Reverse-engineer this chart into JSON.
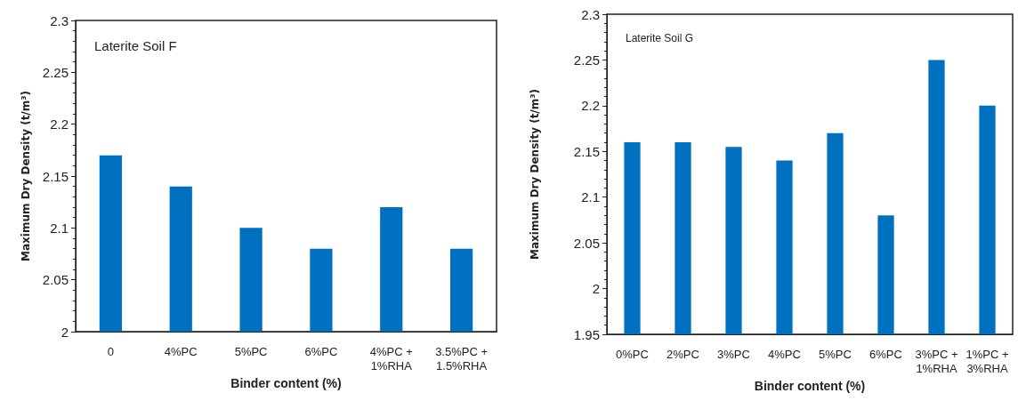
{
  "chart_data": [
    {
      "type": "bar",
      "title": "Laterite Soil F",
      "xlabel": "Binder content (%)",
      "ylabel": "Maximum Dry Density (t/m³)",
      "categories": [
        "0",
        "4%PC",
        "5%PC",
        "6%PC",
        "4%PC +\n1%RHA",
        "3.5%PC +\n1.5%RHA"
      ],
      "values": [
        2.17,
        2.14,
        2.1,
        2.08,
        2.12,
        2.08
      ],
      "color": "#0070c0",
      "ylim": [
        2,
        2.3
      ],
      "yticks": [
        2,
        2.05,
        2.1,
        2.15,
        2.2,
        2.25,
        2.3
      ],
      "grid": false
    },
    {
      "type": "bar",
      "title": "Laterite Soil G",
      "xlabel": "Binder content (%)",
      "ylabel": "Maximum Dry Density (t/m³)",
      "categories": [
        "0%PC",
        "2%PC",
        "3%PC",
        "4%PC",
        "5%PC",
        "6%PC",
        "3%PC +\n1%RHA",
        "1%PC +\n3%RHA"
      ],
      "values": [
        2.16,
        2.16,
        2.155,
        2.14,
        2.17,
        2.08,
        2.25,
        2.2
      ],
      "color": "#0070c0",
      "ylim": [
        1.95,
        2.3
      ],
      "yticks": [
        1.95,
        2,
        2.05,
        2.1,
        2.15,
        2.2,
        2.25,
        2.3
      ],
      "grid": false
    }
  ]
}
